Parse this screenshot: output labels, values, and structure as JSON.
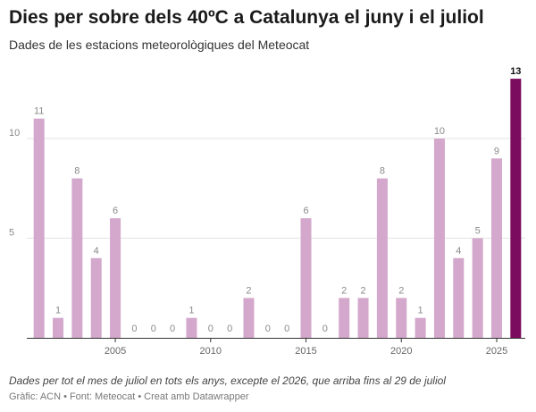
{
  "header": {
    "title": "Dies per sobre dels 40ºC a Catalunya el juny i el juliol",
    "subtitle": "Dades de les estacions meteorològiques del Meteocat"
  },
  "footer": {
    "note": "Dades per tot el mes de juliol en tots els anys, excepte el 2026, que arriba fins al 29 de juliol",
    "source_chart": "Gràfic: ACN",
    "source_data": "Font: Meteocat",
    "source_tool": "Creat amb Datawrapper"
  },
  "chart_data": {
    "type": "bar",
    "categories": [
      "2001",
      "2002",
      "2003",
      "2004",
      "2005",
      "2006",
      "2007",
      "2008",
      "2009",
      "2010",
      "2011",
      "2012",
      "2013",
      "2014",
      "2015",
      "2016",
      "2017",
      "2018",
      "2019",
      "2020",
      "2021",
      "2022",
      "2023",
      "2024",
      "2025",
      "2026"
    ],
    "values": [
      11,
      1,
      8,
      4,
      6,
      0,
      0,
      0,
      1,
      0,
      0,
      2,
      0,
      0,
      6,
      0,
      2,
      2,
      8,
      2,
      1,
      10,
      4,
      5,
      9,
      13
    ],
    "ylim": [
      0,
      13
    ],
    "yticks": [
      5,
      10
    ],
    "xticks": [
      "2005",
      "2010",
      "2015",
      "2020",
      "2025"
    ],
    "grid": true,
    "bar_color": "#d4a8cc",
    "highlight_color": "#7a0b5f",
    "highlight_category": "2026"
  }
}
